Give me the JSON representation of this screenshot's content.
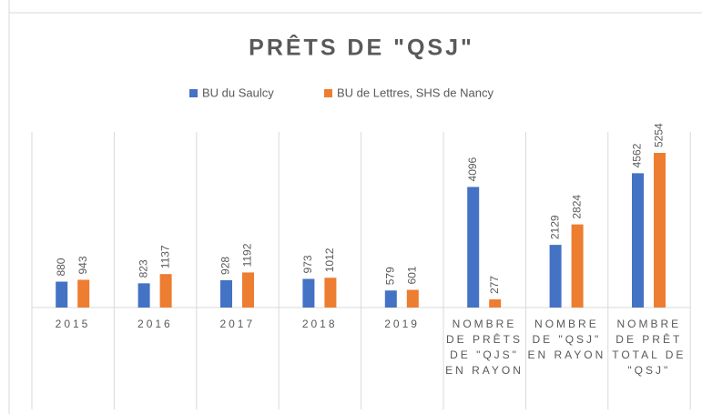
{
  "chart_data": {
    "type": "bar",
    "title": "PRÊTS DE \"QSJ\"",
    "categories": [
      "2015",
      "2016",
      "2017",
      "2018",
      "2019",
      "NOMBRE DE PRÊTS DE \"QJS\" EN RAYON",
      "NOMBRE DE \"QSJ\" EN RAYON",
      "NOMBRE DE PRÊT TOTAL DE \"QSJ\""
    ],
    "series": [
      {
        "name": "BU du Saulcy",
        "color": "#4472c4",
        "values": [
          880,
          823,
          928,
          973,
          579,
          4096,
          2129,
          4562
        ]
      },
      {
        "name": "BU de Lettres, SHS de Nancy",
        "color": "#ed7d31",
        "values": [
          943,
          1137,
          1192,
          1012,
          601,
          277,
          2824,
          5254
        ]
      }
    ],
    "legend": "top"
  }
}
